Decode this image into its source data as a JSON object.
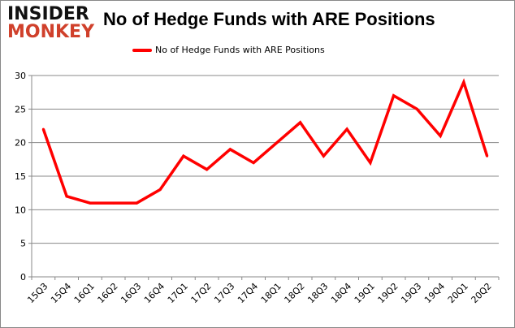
{
  "logo": {
    "line1": "INSIDER",
    "line2": "MONKEY"
  },
  "chart_data": {
    "type": "line",
    "title": "No of Hedge Funds with ARE Positions",
    "categories": [
      "15Q3",
      "15Q4",
      "16Q1",
      "16Q2",
      "16Q3",
      "16Q4",
      "17Q1",
      "17Q2",
      "17Q3",
      "17Q4",
      "18Q1",
      "18Q2",
      "18Q3",
      "18Q4",
      "19Q1",
      "19Q2",
      "19Q3",
      "19Q4",
      "20Q1",
      "20Q2"
    ],
    "series": [
      {
        "name": "No of Hedge Funds with ARE Positions",
        "color": "#ff0000",
        "values": [
          22,
          12,
          11,
          11,
          11,
          13,
          18,
          16,
          19,
          17,
          20,
          23,
          18,
          22,
          17,
          27,
          25,
          21,
          29,
          18
        ]
      }
    ],
    "yticks": [
      0,
      5,
      10,
      15,
      20,
      25,
      30
    ],
    "ylim": [
      0,
      30
    ],
    "xlabel": "",
    "ylabel": "",
    "grid": true,
    "legend": "top-center"
  }
}
